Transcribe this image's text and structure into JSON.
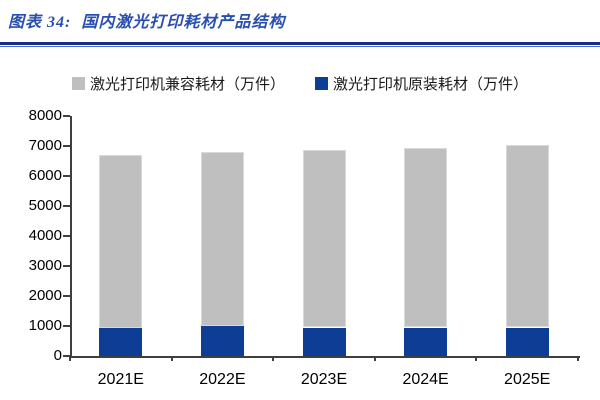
{
  "header": {
    "title": "图表 34:  国内激光打印耗材产品结构"
  },
  "colors": {
    "title_blue": "#2950AE",
    "divider_navy": "#152F7D",
    "divider_light": "#4169C8",
    "axis": "#3f3f3f",
    "bar_gray": "#BFBFBF",
    "bar_blue": "#0E3D96"
  },
  "chart_data": {
    "type": "bar",
    "stacked": true,
    "title": "国内激光打印耗材产品结构",
    "figure_label": "图表 34",
    "categories": [
      "2021E",
      "2022E",
      "2023E",
      "2024E",
      "2025E"
    ],
    "series": [
      {
        "name": "激光打印机兼容耗材（万件）",
        "color": "#BFBFBF",
        "stack_position": "top",
        "values": [
          5750,
          5800,
          5920,
          5980,
          6090
        ]
      },
      {
        "name": "激光打印机原装耗材（万件）",
        "color": "#0E3D96",
        "stack_position": "bottom",
        "values": [
          950,
          1000,
          950,
          950,
          950
        ]
      }
    ],
    "stacked_totals": [
      6700,
      6800,
      6870,
      6930,
      7040
    ],
    "ylim": [
      0,
      8000
    ],
    "yticks": [
      0,
      1000,
      2000,
      3000,
      4000,
      5000,
      6000,
      7000,
      8000
    ],
    "xlabel": "",
    "ylabel": "",
    "legend_position": "top",
    "grid": false
  }
}
